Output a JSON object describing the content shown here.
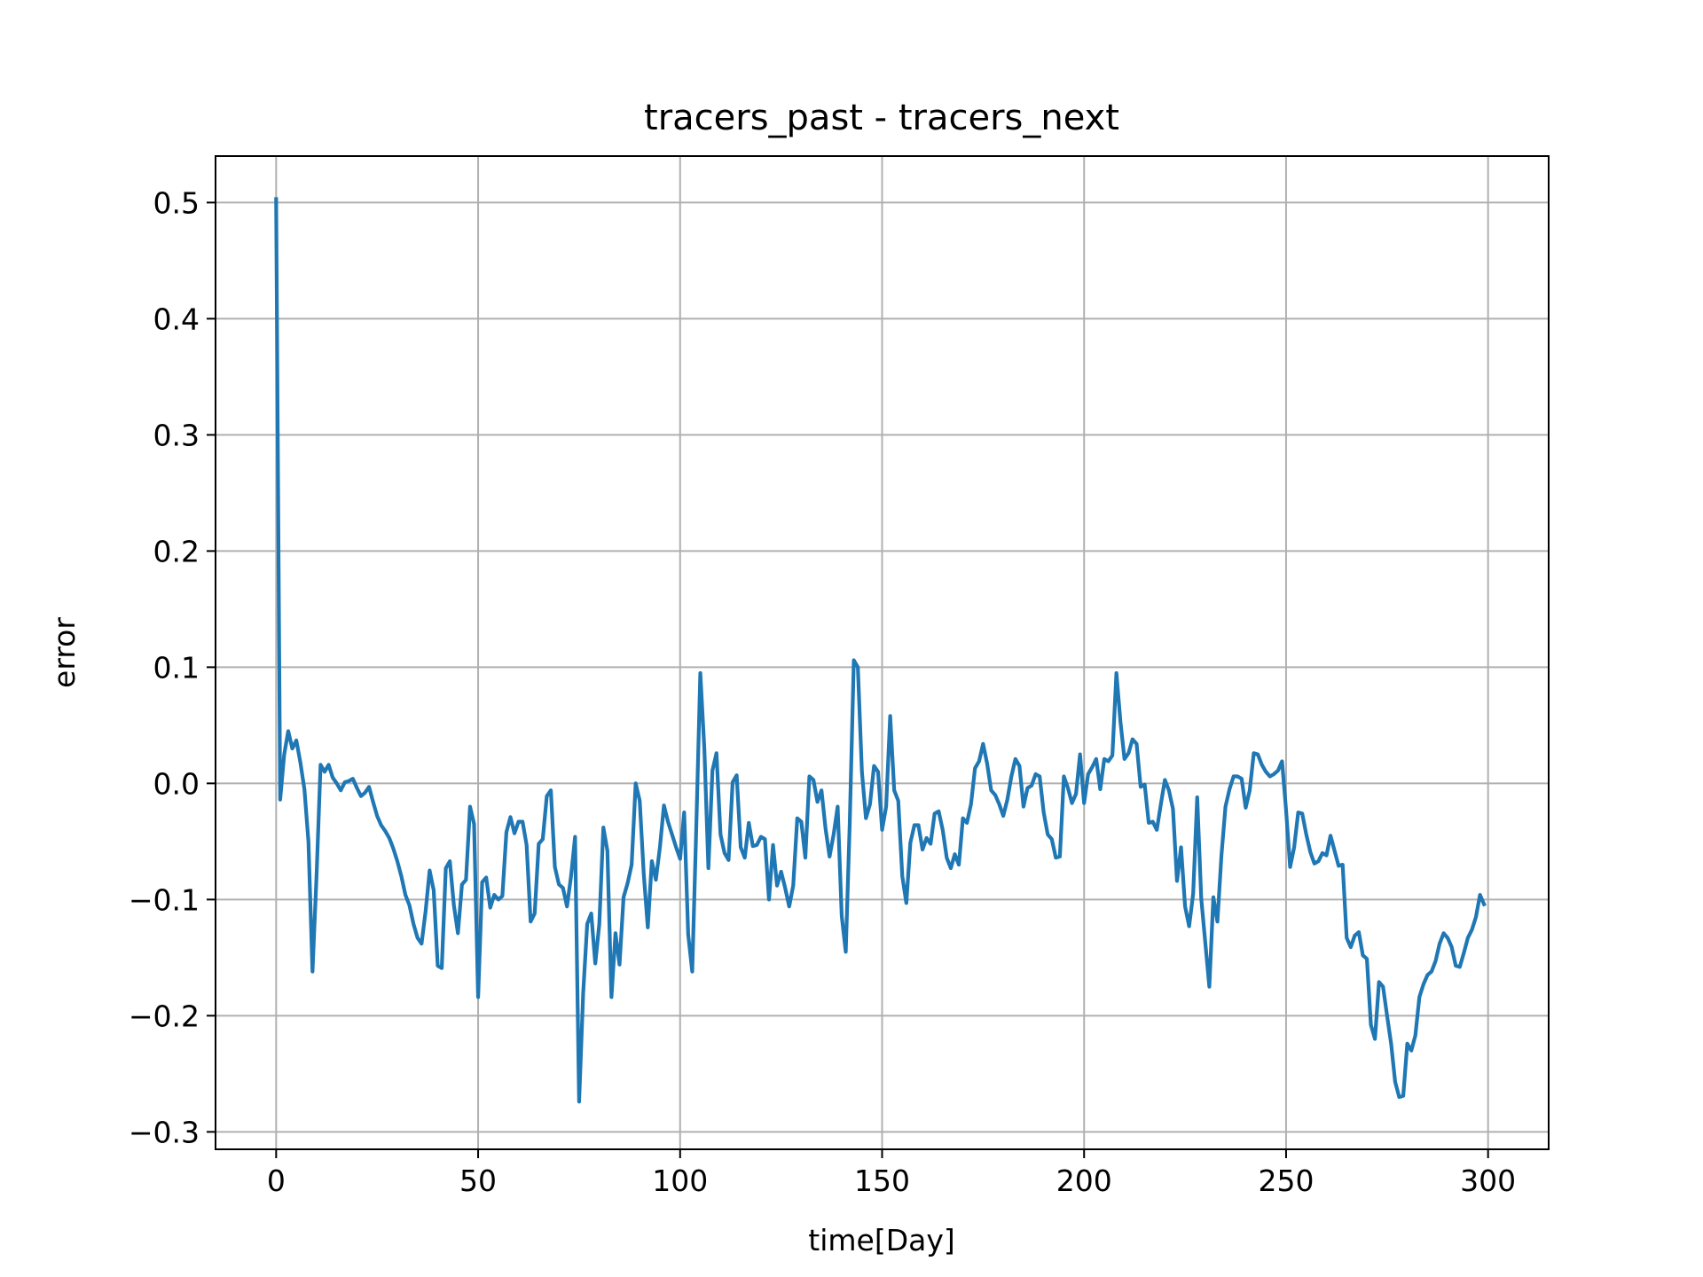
{
  "chart_data": {
    "type": "line",
    "title": "tracers_past - tracers_next",
    "xlabel": "time[Day]",
    "ylabel": "error",
    "xlim": [
      -15,
      315
    ],
    "ylim": [
      -0.315,
      0.54
    ],
    "xticks": [
      0,
      50,
      100,
      150,
      200,
      250,
      300
    ],
    "yticks": [
      0.5,
      0.4,
      0.3,
      0.2,
      0.1,
      0.0,
      -0.1,
      -0.2,
      -0.3
    ],
    "xtick_labels": [
      "0",
      "50",
      "100",
      "150",
      "200",
      "250",
      "300"
    ],
    "ytick_labels": [
      "0.5",
      "0.4",
      "0.3",
      "0.2",
      "0.1",
      "0.0",
      "−0.1",
      "−0.2",
      "−0.3"
    ],
    "grid": true,
    "line_color": "#1f77b4",
    "series": [
      {
        "x": [
          0,
          1,
          2,
          3,
          4,
          5,
          6,
          7,
          8,
          9,
          10,
          11,
          12,
          13,
          14,
          15,
          16,
          17,
          18,
          19,
          20,
          21,
          22,
          23,
          24,
          25,
          26,
          27,
          28,
          29,
          30,
          31,
          32,
          33,
          34,
          35,
          36,
          37,
          38,
          39,
          40,
          41,
          42,
          43,
          44,
          45,
          46,
          47,
          48,
          49,
          50,
          51,
          52,
          53,
          54,
          55,
          56,
          57,
          58,
          59,
          60,
          61,
          62,
          63,
          64,
          65,
          66,
          67,
          68,
          69,
          70,
          71,
          72,
          73,
          74,
          75,
          76,
          77,
          78,
          79,
          80,
          81,
          82,
          83,
          84,
          85,
          86,
          87,
          88,
          89,
          90,
          91,
          92,
          93,
          94,
          95,
          96,
          97,
          98,
          99,
          100,
          101,
          102,
          103,
          104,
          105,
          106,
          107,
          108,
          109,
          110,
          111,
          112,
          113,
          114,
          115,
          116,
          117,
          118,
          119,
          120,
          121,
          122,
          123,
          124,
          125,
          126,
          127,
          128,
          129,
          130,
          131,
          132,
          133,
          134,
          135,
          136,
          137,
          138,
          139,
          140,
          141,
          142,
          143,
          144,
          145,
          146,
          147,
          148,
          149,
          150,
          151,
          152,
          153,
          154,
          155,
          156,
          157,
          158,
          159,
          160,
          161,
          162,
          163,
          164,
          165,
          166,
          167,
          168,
          169,
          170,
          171,
          172,
          173,
          174,
          175,
          176,
          177,
          178,
          179,
          180,
          181,
          182,
          183,
          184,
          185,
          186,
          187,
          188,
          189,
          190,
          191,
          192,
          193,
          194,
          195,
          196,
          197,
          198,
          199,
          200,
          201,
          202,
          203,
          204,
          205,
          206,
          207,
          208,
          209,
          210,
          211,
          212,
          213,
          214,
          215,
          216,
          217,
          218,
          219,
          220,
          221,
          222,
          223,
          224,
          225,
          226,
          227,
          228,
          229,
          230,
          231,
          232,
          233,
          234,
          235,
          236,
          237,
          238,
          239,
          240,
          241,
          242,
          243,
          244,
          245,
          246,
          247,
          248,
          249,
          250,
          251,
          252,
          253,
          254,
          255,
          256,
          257,
          258,
          259,
          260,
          261,
          262,
          263,
          264,
          265,
          266,
          267,
          268,
          269,
          270,
          271,
          272,
          273,
          274,
          275,
          276,
          277,
          278,
          279,
          280,
          281,
          282,
          283,
          284,
          285,
          286,
          287,
          288,
          289,
          290,
          291,
          292,
          293,
          294,
          295,
          296,
          297,
          298,
          299
        ],
        "y": [
          0.503,
          -0.014,
          0.025,
          0.045,
          0.03,
          0.037,
          0.018,
          -0.005,
          -0.05,
          -0.162,
          -0.08,
          0.016,
          0.01,
          0.016,
          0.005,
          0.0,
          -0.006,
          0.001,
          0.002,
          0.004,
          -0.004,
          -0.011,
          -0.008,
          -0.003,
          -0.016,
          -0.028,
          -0.036,
          -0.041,
          -0.047,
          -0.056,
          -0.067,
          -0.08,
          -0.096,
          -0.105,
          -0.121,
          -0.133,
          -0.138,
          -0.11,
          -0.075,
          -0.092,
          -0.157,
          -0.159,
          -0.073,
          -0.067,
          -0.105,
          -0.129,
          -0.087,
          -0.083,
          -0.02,
          -0.035,
          -0.184,
          -0.085,
          -0.081,
          -0.107,
          -0.096,
          -0.1,
          -0.097,
          -0.042,
          -0.029,
          -0.043,
          -0.033,
          -0.033,
          -0.053,
          -0.119,
          -0.112,
          -0.052,
          -0.048,
          -0.011,
          -0.006,
          -0.072,
          -0.087,
          -0.09,
          -0.106,
          -0.08,
          -0.046,
          -0.274,
          -0.181,
          -0.121,
          -0.112,
          -0.155,
          -0.121,
          -0.038,
          -0.058,
          -0.184,
          -0.129,
          -0.156,
          -0.098,
          -0.086,
          -0.07,
          0.0,
          -0.015,
          -0.078,
          -0.124,
          -0.067,
          -0.083,
          -0.055,
          -0.019,
          -0.033,
          -0.044,
          -0.055,
          -0.065,
          -0.025,
          -0.13,
          -0.162,
          -0.038,
          0.095,
          0.03,
          -0.073,
          0.011,
          0.026,
          -0.044,
          -0.06,
          -0.066,
          0.001,
          0.007,
          -0.055,
          -0.064,
          -0.034,
          -0.054,
          -0.053,
          -0.046,
          -0.048,
          -0.1,
          -0.053,
          -0.088,
          -0.076,
          -0.09,
          -0.106,
          -0.088,
          -0.03,
          -0.033,
          -0.064,
          0.006,
          0.003,
          -0.016,
          -0.006,
          -0.039,
          -0.063,
          -0.044,
          -0.02,
          -0.114,
          -0.145,
          -0.033,
          0.106,
          0.1,
          0.01,
          -0.03,
          -0.018,
          0.015,
          0.01,
          -0.04,
          -0.02,
          0.058,
          -0.006,
          -0.015,
          -0.08,
          -0.103,
          -0.051,
          -0.036,
          -0.036,
          -0.057,
          -0.047,
          -0.052,
          -0.026,
          -0.024,
          -0.04,
          -0.064,
          -0.073,
          -0.061,
          -0.07,
          -0.03,
          -0.034,
          -0.018,
          0.013,
          0.019,
          0.034,
          0.017,
          -0.006,
          -0.01,
          -0.018,
          -0.028,
          -0.014,
          0.006,
          0.021,
          0.015,
          -0.02,
          -0.004,
          -0.002,
          0.008,
          0.006,
          -0.025,
          -0.044,
          -0.048,
          -0.064,
          -0.063,
          0.006,
          -0.004,
          -0.017,
          -0.009,
          0.025,
          -0.017,
          0.008,
          0.014,
          0.021,
          -0.005,
          0.021,
          0.019,
          0.024,
          0.095,
          0.053,
          0.021,
          0.026,
          0.038,
          0.034,
          -0.003,
          -0.001,
          -0.034,
          -0.033,
          -0.04,
          -0.018,
          0.003,
          -0.006,
          -0.022,
          -0.084,
          -0.055,
          -0.106,
          -0.123,
          -0.095,
          -0.012,
          -0.099,
          -0.137,
          -0.175,
          -0.098,
          -0.119,
          -0.062,
          -0.02,
          -0.005,
          0.006,
          0.006,
          0.004,
          -0.021,
          -0.006,
          0.026,
          0.025,
          0.016,
          0.01,
          0.006,
          0.008,
          0.011,
          0.019,
          -0.023,
          -0.072,
          -0.055,
          -0.025,
          -0.026,
          -0.044,
          -0.059,
          -0.069,
          -0.067,
          -0.06,
          -0.062,
          -0.045,
          -0.058,
          -0.071,
          -0.07,
          -0.133,
          -0.141,
          -0.131,
          -0.128,
          -0.148,
          -0.151,
          -0.208,
          -0.22,
          -0.171,
          -0.175,
          -0.2,
          -0.224,
          -0.257,
          -0.27,
          -0.269,
          -0.224,
          -0.23,
          -0.217,
          -0.184,
          -0.173,
          -0.165,
          -0.162,
          -0.153,
          -0.138,
          -0.129,
          -0.133,
          -0.141,
          -0.157,
          -0.158,
          -0.146,
          -0.133,
          -0.126,
          -0.115,
          -0.096,
          -0.104
        ]
      }
    ]
  }
}
